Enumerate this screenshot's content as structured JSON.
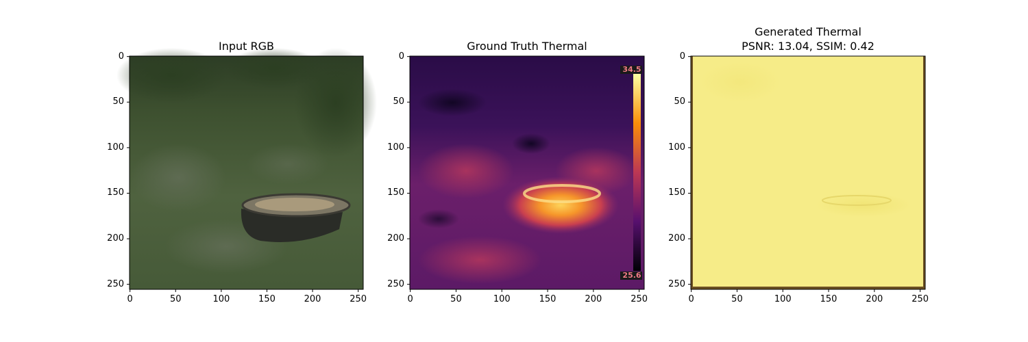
{
  "panels": [
    {
      "title": "Input RGB",
      "image": "grass field with tree stump (RGB photograph)"
    },
    {
      "title": "Ground Truth Thermal",
      "image": "thermal image, inferno colormap, warm tree stump",
      "colorbar": {
        "max_label": "34.5",
        "min_label": "25.6"
      }
    },
    {
      "title_line1": "Generated Thermal",
      "title_line2": "PSNR: 13.04, SSIM: 0.42",
      "image": "near-uniform yellow generated thermal image"
    }
  ],
  "axes": {
    "xlim": [
      0,
      255
    ],
    "ylim": [
      255,
      0
    ],
    "x_ticks": [
      "0",
      "50",
      "100",
      "150",
      "200",
      "250"
    ],
    "y_ticks": [
      "0",
      "50",
      "100",
      "150",
      "200",
      "250"
    ]
  },
  "colors": {
    "rgb_grass": "#4a5e3c",
    "rgb_dark": "#2b3a24",
    "thermal_bg": "#3a1257",
    "thermal_hot": "#fdb330",
    "generated": "#f6ec86"
  }
}
